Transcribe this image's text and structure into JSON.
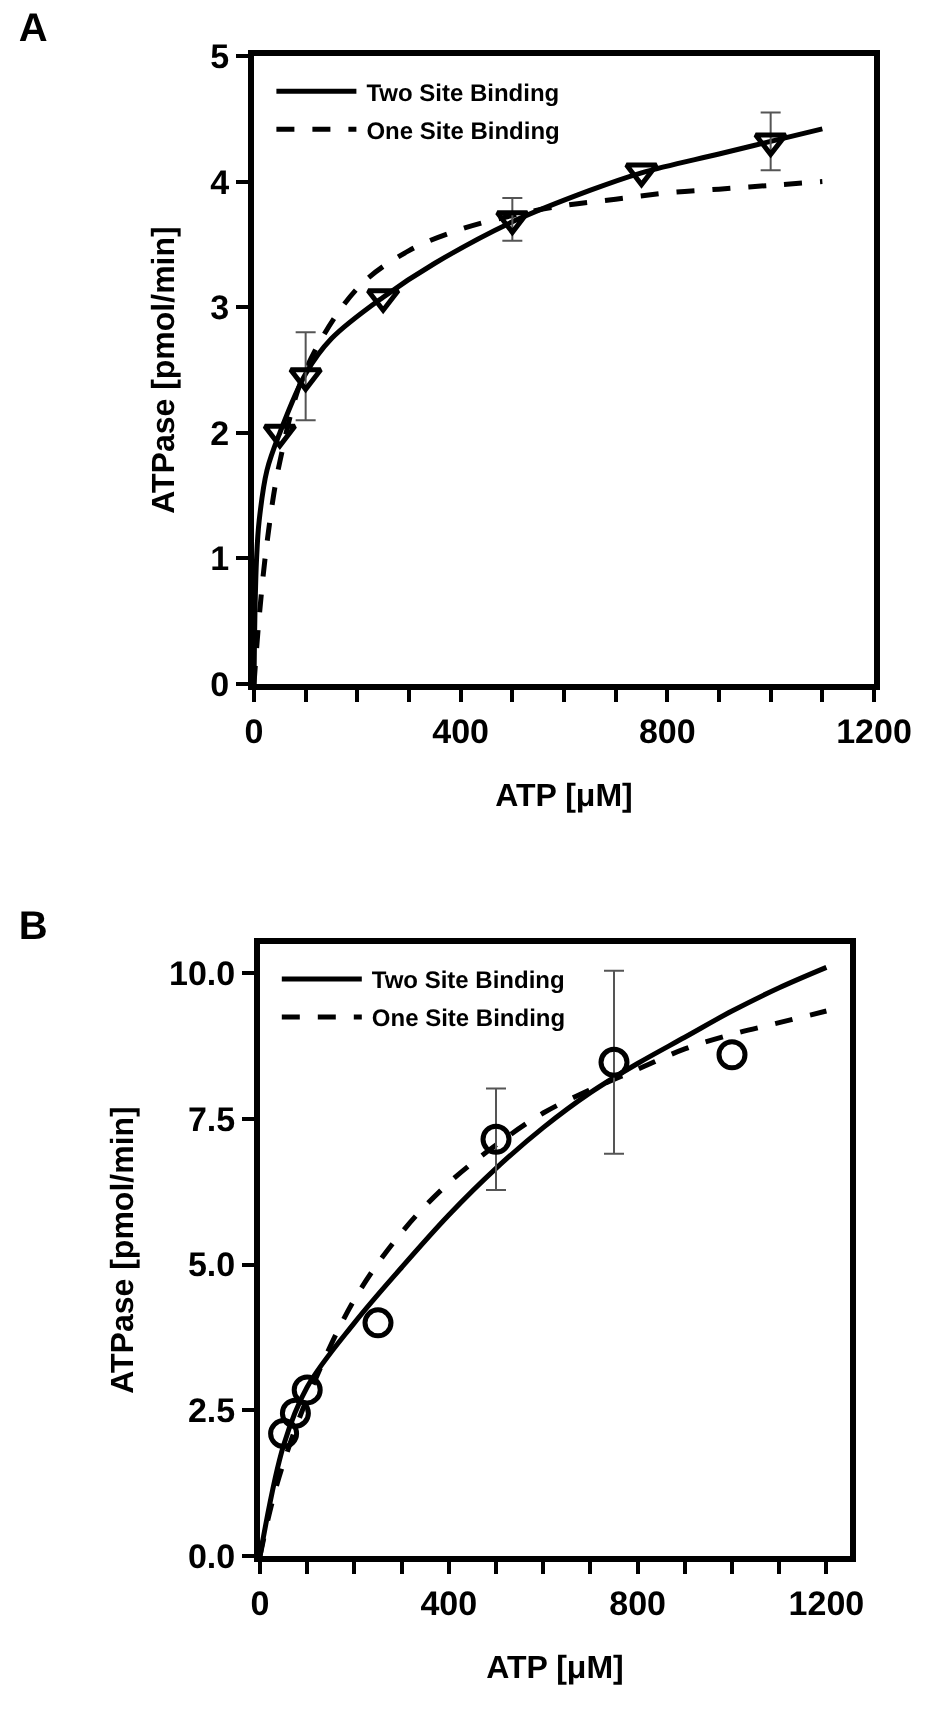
{
  "chart_data": [
    {
      "type": "line",
      "title": "A",
      "xlabel": "ATP [μM]",
      "ylabel": "ATPase [pmol/min]",
      "xlim": [
        0,
        1200
      ],
      "ylim": [
        0,
        5
      ],
      "xticks": [
        0,
        {
          "value": 100,
          "label": null
        },
        {
          "value": 200,
          "label": null
        },
        {
          "value": 300,
          "label": null
        },
        400,
        {
          "value": 500,
          "label": null
        },
        {
          "value": 600,
          "label": null
        },
        {
          "value": 700,
          "label": null
        },
        800,
        {
          "value": 900,
          "label": null
        },
        {
          "value": 1000,
          "label": null
        },
        {
          "value": 1100,
          "label": null
        },
        1200
      ],
      "yticks": [
        0,
        1,
        2,
        3,
        4,
        5
      ],
      "grid": false,
      "legend": "top left",
      "series": [
        {
          "name": "Two Site Binding",
          "color": "#000000",
          "line_style": "solid",
          "marker": "none",
          "x": [
            0,
            2,
            5,
            10,
            25,
            50,
            100,
            150,
            250,
            350,
            500,
            650,
            750,
            900,
            1000,
            1100
          ],
          "values": [
            0,
            0.6,
            1.0,
            1.3,
            1.7,
            2.0,
            2.47,
            2.75,
            3.08,
            3.35,
            3.68,
            3.93,
            4.07,
            4.22,
            4.32,
            4.42
          ]
        },
        {
          "name": "One Site Binding",
          "color": "#000000",
          "line_style": "dashed",
          "marker": "none",
          "x": [
            0,
            10,
            25,
            50,
            100,
            200,
            300,
            400,
            500,
            600,
            700,
            800,
            900,
            1000,
            1100
          ],
          "values": [
            0,
            0.53,
            1.12,
            1.77,
            2.5,
            3.15,
            3.45,
            3.62,
            3.73,
            3.81,
            3.86,
            3.91,
            3.94,
            3.97,
            4.0
          ]
        },
        {
          "type": "scatter",
          "color": "#000000",
          "marker": "triangle-down",
          "x": [
            50,
            100,
            250,
            500,
            750,
            1000
          ],
          "values": [
            2.0,
            2.45,
            3.08,
            3.7,
            4.08,
            4.32
          ],
          "errors": [
            null,
            0.35,
            null,
            0.17,
            null,
            0.23
          ]
        }
      ]
    },
    {
      "type": "line",
      "title": "B",
      "xlabel": "ATP [μM]",
      "ylabel": "ATPase [pmol/min]",
      "xlim": [
        0,
        1250
      ],
      "ylim": [
        0,
        10.5
      ],
      "xticks": [
        0,
        {
          "value": 100,
          "label": null
        },
        {
          "value": 200,
          "label": null
        },
        {
          "value": 300,
          "label": null
        },
        400,
        {
          "value": 500,
          "label": null
        },
        {
          "value": 600,
          "label": null
        },
        {
          "value": 700,
          "label": null
        },
        800,
        {
          "value": 900,
          "label": null
        },
        {
          "value": 1000,
          "label": null
        },
        {
          "value": 1100,
          "label": null
        },
        1200
      ],
      "yticks": [
        {
          "value": 0,
          "label": "0.0"
        },
        {
          "value": 2.5,
          "label": "2.5"
        },
        {
          "value": 5,
          "label": "5.0"
        },
        {
          "value": 7.5,
          "label": "7.5"
        },
        {
          "value": 10,
          "label": "10.0"
        }
      ],
      "grid": false,
      "legend": "top left",
      "series": [
        {
          "name": "Two Site Binding",
          "color": "#000000",
          "line_style": "solid",
          "marker": "none",
          "x": [
            0,
            50,
            100,
            200,
            300,
            400,
            500,
            600,
            700,
            800,
            900,
            1000,
            1100,
            1200
          ],
          "values": [
            0,
            1.9,
            2.9,
            4.0,
            4.95,
            5.85,
            6.65,
            7.35,
            7.95,
            8.45,
            8.9,
            9.35,
            9.75,
            10.1
          ]
        },
        {
          "name": "One Site Binding",
          "color": "#000000",
          "line_style": "dashed",
          "marker": "none",
          "x": [
            0,
            25,
            50,
            100,
            200,
            300,
            400,
            500,
            600,
            700,
            800,
            900,
            1000,
            1100,
            1200
          ],
          "values": [
            0,
            0.9,
            1.6,
            2.7,
            4.4,
            5.55,
            6.4,
            7.05,
            7.6,
            8.0,
            8.35,
            8.7,
            8.95,
            9.15,
            9.35
          ]
        },
        {
          "type": "scatter",
          "color": "#000000",
          "marker": "circle",
          "x": [
            50,
            75,
            100,
            250,
            500,
            750,
            1000
          ],
          "values": [
            2.1,
            2.45,
            2.85,
            4.0,
            7.15,
            8.47,
            8.6
          ],
          "errors": [
            null,
            null,
            null,
            null,
            0.87,
            1.57,
            null
          ]
        }
      ]
    }
  ]
}
